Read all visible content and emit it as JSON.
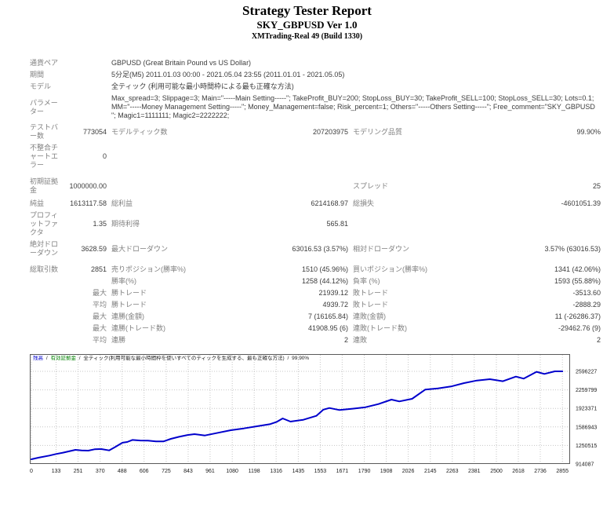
{
  "header": {
    "title": "Strategy Tester Report",
    "subtitle": "SKY_GBPUSD Ver 1.0",
    "broker": "XMTrading-Real 49 (Build 1330)"
  },
  "colors": {
    "balance_line": "#0000cc",
    "legend_balance": "#0000cc",
    "legend_equity": "#008000"
  },
  "report": {
    "rows": [
      {
        "label": "通貨ペア",
        "text": "GBPUSD (Great Britain Pound vs US Dollar)"
      },
      {
        "label": "期間",
        "text": "5分足(M5) 2011.01.03 00:00 - 2021.05.04 23:55 (2011.01.01 - 2021.05.05)"
      },
      {
        "label": "モデル",
        "text": "全ティック (利用可能な最小時間枠による最も正確な方法)"
      },
      {
        "label": "パラメーター",
        "text": "Max_spread=3; Slippage=3; Main=\"-----Main Setting-----\"; TakeProfit_BUY=200; StopLoss_BUY=30; TakeProfit_SELL=100; StopLoss_SELL=30; Lots=0.1; MM=\"-----Money Management Setting-----\"; Money_Management=false; Risk_percent=1; Others=\"-----Others Setting-----\"; Free_comment=\"SKY_GBPUSD \"; Magic1=1111111; Magic2=2222222;"
      },
      {
        "label": "テストバー数",
        "v1": "773054",
        "d1": "モデルティック数",
        "v2": "207203975",
        "d2": "モデリング品質",
        "v3": "99.90%"
      },
      {
        "label": "不整合チャートエラー",
        "v1": "0",
        "d1": "",
        "v2": "",
        "d2": "",
        "v3": ""
      },
      {
        "label": "初期証拠金",
        "v1": "1000000.00",
        "d1": "",
        "v2": "",
        "d2": "スプレッド",
        "v3": "25"
      },
      {
        "label": "純益",
        "v1": "1613117.58",
        "d1": "総利益",
        "v2": "6214168.97",
        "d2": "総損失",
        "v3": "-4601051.39"
      },
      {
        "label": "プロフィットファクタ",
        "v1": "1.35",
        "d1": "期待利得",
        "v2": "565.81",
        "d2": "",
        "v3": ""
      },
      {
        "label": "絶対ドローダウン",
        "v1": "3628.59",
        "d1": "最大ドローダウン",
        "v2": "63016.53 (3.57%)",
        "d2": "相対ドローダウン",
        "v3": "3.57% (63016.53)"
      },
      {
        "label": "総取引数",
        "v1": "2851",
        "d1": "売りポジション(勝率%)",
        "v2": "1510 (45.96%)",
        "d2": "買いポジション(勝率%)",
        "v3": "1341 (42.06%)"
      },
      {
        "label": "",
        "v1": "",
        "d1": "勝率(%)",
        "v2": "1258 (44.12%)",
        "d2": "負率 (%)",
        "v3": "1593 (55.88%)"
      },
      {
        "label": "",
        "v1": "最大",
        "d1": "勝トレード",
        "v2": "21939.12",
        "d2": "敗トレード",
        "v3": "-3513.60"
      },
      {
        "label": "",
        "v1": "平均",
        "d1": "勝トレード",
        "v2": "4939.72",
        "d2": "敗トレード",
        "v3": "-2888.29"
      },
      {
        "label": "",
        "v1": "最大",
        "d1": "連勝(金額)",
        "v2": "7 (16165.84)",
        "d2": "連敗(金額)",
        "v3": "11 (-26286.37)"
      },
      {
        "label": "",
        "v1": "最大",
        "d1": "連勝(トレード数)",
        "v2": "41908.95 (6)",
        "d2": "連敗(トレード数)",
        "v3": "-29462.76 (9)"
      },
      {
        "label": "",
        "v1": "平均",
        "d1": "連勝",
        "v2": "2",
        "d2": "連敗",
        "v3": "2"
      }
    ]
  },
  "chart": {
    "legend": {
      "balance": "残高",
      "equity": "有効証拠金",
      "model": "全ティック(利用可能な最小時間枠を使いすべてのティックを生成する、最も正確な方法)",
      "quality": "99.90%",
      "sep": "/"
    }
  },
  "chart_data": {
    "type": "line",
    "title": "",
    "xlabel": "",
    "ylabel": "",
    "grid": "dotted",
    "legend_position": "top-left-inside",
    "xlim": [
      0,
      2871
    ],
    "ylim": [
      914087,
      2596227
    ],
    "xticks": [
      0,
      133,
      251,
      370,
      488,
      606,
      725,
      843,
      961,
      1080,
      1198,
      1316,
      1435,
      1553,
      1671,
      1790,
      1908,
      2026,
      2145,
      2263,
      2381,
      2500,
      2618,
      2736,
      2855
    ],
    "yticks": [
      914087,
      1250515,
      1586943,
      1923371,
      2259799,
      2596227
    ],
    "series": [
      {
        "name": "残高",
        "color": "#0000cc",
        "x": [
          0,
          40,
          97,
          133,
          170,
          237,
          270,
          306,
          340,
          376,
          418,
          450,
          490,
          515,
          543,
          585,
          627,
          670,
          710,
          750,
          794,
          840,
          877,
          933,
          1003,
          1072,
          1142,
          1212,
          1281,
          1320,
          1351,
          1393,
          1462,
          1532,
          1570,
          1602,
          1657,
          1727,
          1797,
          1866,
          1936,
          1978,
          2047,
          2117,
          2186,
          2256,
          2326,
          2395,
          2465,
          2535,
          2605,
          2647,
          2716,
          2758,
          2814,
          2855
        ],
        "y": [
          1000000,
          1030000,
          1066000,
          1095000,
          1120000,
          1171000,
          1160000,
          1156000,
          1180000,
          1185000,
          1161000,
          1220000,
          1300000,
          1313000,
          1351000,
          1340000,
          1337000,
          1325000,
          1323000,
          1370000,
          1408000,
          1440000,
          1456000,
          1432000,
          1480000,
          1527000,
          1560000,
          1598000,
          1636000,
          1680000,
          1741000,
          1684000,
          1717000,
          1788000,
          1900000,
          1931000,
          1893000,
          1917000,
          1945000,
          2002000,
          2083000,
          2050000,
          2097000,
          2264000,
          2287000,
          2321000,
          2382000,
          2430000,
          2454000,
          2416000,
          2501000,
          2463000,
          2587000,
          2549000,
          2596000,
          2596227
        ]
      }
    ]
  }
}
